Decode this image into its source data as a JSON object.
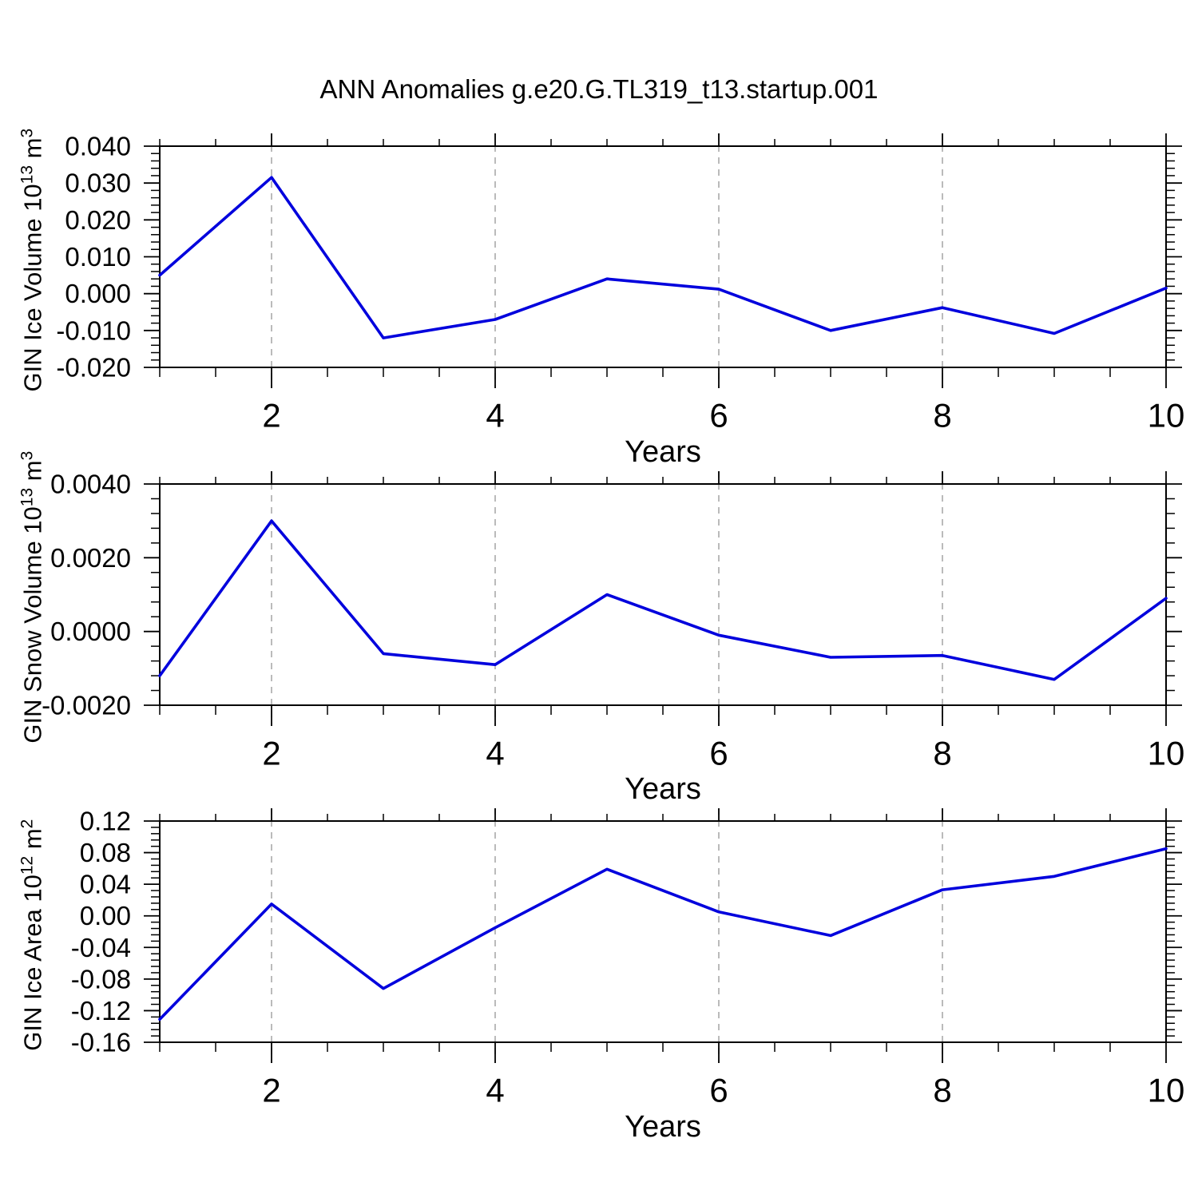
{
  "title": "ANN Anomalies g.e20.G.TL319_t13.startup.001",
  "chart_data": {
    "type": "line",
    "title": "ANN Anomalies g.e20.G.TL319_t13.startup.001",
    "line_color": "#0000dd",
    "grid_color": "#aaaaaa",
    "frame_color": "#000000",
    "tick_color": "#000000",
    "legend": "none",
    "panels": [
      {
        "name": "gin-ice-volume",
        "ylabel": {
          "prefix": "GIN Ice Volume 10",
          "exp": "13",
          "unit": " m",
          "unit_exp": "3"
        },
        "xlabel": "Years",
        "x": [
          1,
          2,
          3,
          4,
          5,
          6,
          7,
          8,
          9,
          10
        ],
        "values": [
          0.005,
          0.0315,
          -0.012,
          -0.007,
          0.004,
          0.0012,
          -0.01,
          -0.0038,
          -0.0108,
          0.0015
        ],
        "xlim": [
          1,
          10
        ],
        "ylim": [
          -0.02,
          0.04
        ],
        "yticks": [
          0.04,
          0.03,
          0.02,
          0.01,
          0,
          -0.01,
          -0.02
        ],
        "ytick_labels": [
          "0.040",
          "0.030",
          "0.020",
          "0.010",
          "0.000",
          "-0.010",
          "-0.020"
        ],
        "y_minor_step": 0.002,
        "xticks": [
          2,
          4,
          6,
          8,
          10
        ],
        "xtick_labels": [
          "2",
          "4",
          "6",
          "8",
          "10"
        ],
        "x_minor_step": 0.5,
        "grid_x": [
          2,
          4,
          6,
          8
        ]
      },
      {
        "name": "gin-snow-volume",
        "ylabel": {
          "prefix": "GIN Snow Volume 10",
          "exp": "13",
          "unit": " m",
          "unit_exp": "3"
        },
        "xlabel": "Years",
        "x": [
          1,
          2,
          3,
          4,
          5,
          6,
          7,
          8,
          9,
          10
        ],
        "values": [
          -0.0012,
          0.003,
          -0.0006,
          -0.0009,
          0.001,
          -0.0001,
          -0.0007,
          -0.00065,
          -0.0013,
          0.0009
        ],
        "xlim": [
          1,
          10
        ],
        "ylim": [
          -0.002,
          0.004
        ],
        "yticks": [
          0.004,
          0.002,
          0,
          -0.002
        ],
        "ytick_labels": [
          "0.0040",
          "0.0020",
          "0.0000",
          "-0.0020"
        ],
        "y_minor_step": 0.0004,
        "xticks": [
          2,
          4,
          6,
          8,
          10
        ],
        "xtick_labels": [
          "2",
          "4",
          "6",
          "8",
          "10"
        ],
        "x_minor_step": 0.5,
        "grid_x": [
          2,
          4,
          6,
          8
        ]
      },
      {
        "name": "gin-ice-area",
        "ylabel": {
          "prefix": "GIN Ice Area 10",
          "exp": "12",
          "unit": " m",
          "unit_exp": "2"
        },
        "xlabel": "Years",
        "x": [
          1,
          2,
          3,
          4,
          5,
          6,
          7,
          8,
          9,
          10
        ],
        "values": [
          -0.131,
          0.015,
          -0.092,
          -0.015,
          0.059,
          0.005,
          -0.025,
          0.033,
          0.05,
          0.085
        ],
        "xlim": [
          1,
          10
        ],
        "ylim": [
          -0.16,
          0.12
        ],
        "yticks": [
          0.12,
          0.08,
          0.04,
          0,
          -0.04,
          -0.08,
          -0.12,
          -0.16
        ],
        "ytick_labels": [
          "0.12",
          "0.08",
          "0.04",
          "0.00",
          "-0.04",
          "-0.08",
          "-0.12",
          "-0.16"
        ],
        "y_minor_step": 0.008,
        "xticks": [
          2,
          4,
          6,
          8,
          10
        ],
        "xtick_labels": [
          "2",
          "4",
          "6",
          "8",
          "10"
        ],
        "x_minor_step": 0.5,
        "grid_x": [
          2,
          4,
          6,
          8
        ]
      }
    ]
  }
}
